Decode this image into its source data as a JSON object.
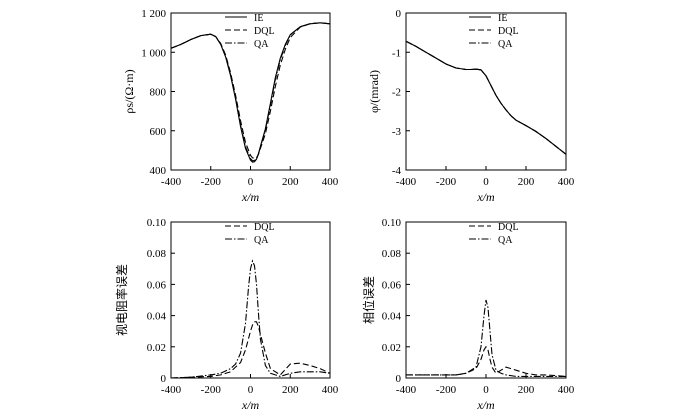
{
  "chart_data": [
    {
      "type": "line",
      "panel": "top-left",
      "xlabel": "x/m",
      "ylabel": "ρs/(Ω·m)",
      "xlim": [
        -400,
        400
      ],
      "ylim": [
        400,
        1200
      ],
      "xticks": [
        -400,
        -200,
        0,
        200,
        400
      ],
      "xtick_labels": [
        "-400",
        "-200",
        "0",
        "200",
        "400"
      ],
      "yticks": [
        400,
        600,
        800,
        1000,
        1200
      ],
      "ytick_labels": [
        "400",
        "600",
        "800",
        "1 000",
        "1 200"
      ],
      "legend": [
        "IE",
        "DQL",
        "QA"
      ],
      "series": [
        {
          "name": "IE",
          "style": "solid",
          "x": [
            -400,
            -350,
            -300,
            -250,
            -200,
            -175,
            -150,
            -125,
            -100,
            -75,
            -50,
            -25,
            0,
            10,
            20,
            30,
            40,
            50,
            75,
            100,
            125,
            150,
            175,
            200,
            250,
            300,
            350,
            400
          ],
          "y": [
            1020,
            1040,
            1065,
            1085,
            1092,
            1080,
            1040,
            975,
            880,
            760,
            620,
            510,
            450,
            440,
            442,
            455,
            480,
            520,
            610,
            740,
            870,
            970,
            1040,
            1090,
            1130,
            1145,
            1150,
            1145
          ]
        },
        {
          "name": "DQL",
          "style": "dashed",
          "x": [
            -400,
            -350,
            -300,
            -250,
            -200,
            -175,
            -150,
            -125,
            -100,
            -75,
            -50,
            -25,
            0,
            10,
            20,
            30,
            40,
            50,
            75,
            100,
            125,
            150,
            175,
            200,
            250,
            300,
            350,
            400
          ],
          "y": [
            1020,
            1040,
            1065,
            1085,
            1092,
            1080,
            1045,
            985,
            895,
            780,
            650,
            540,
            475,
            462,
            458,
            462,
            480,
            510,
            585,
            700,
            825,
            935,
            1015,
            1075,
            1128,
            1146,
            1150,
            1145
          ]
        },
        {
          "name": "QA",
          "style": "dashdot",
          "x": [
            -400,
            -350,
            -300,
            -250,
            -200,
            -175,
            -150,
            -125,
            -100,
            -75,
            -50,
            -25,
            0,
            10,
            20,
            30,
            40,
            50,
            75,
            100,
            125,
            150,
            175,
            200,
            250,
            300,
            350,
            400
          ],
          "y": [
            1020,
            1040,
            1065,
            1085,
            1092,
            1080,
            1042,
            978,
            885,
            765,
            628,
            518,
            458,
            447,
            448,
            460,
            482,
            518,
            605,
            730,
            860,
            962,
            1035,
            1088,
            1130,
            1145,
            1150,
            1145
          ]
        }
      ]
    },
    {
      "type": "line",
      "panel": "top-right",
      "xlabel": "x/m",
      "ylabel": "φ/(mrad)",
      "xlim": [
        -400,
        400
      ],
      "ylim": [
        -4,
        0
      ],
      "xticks": [
        -400,
        -200,
        0,
        200,
        400
      ],
      "xtick_labels": [
        "-400",
        "-200",
        "0",
        "200",
        "400"
      ],
      "yticks": [
        -4,
        -3,
        -2,
        -1,
        0
      ],
      "ytick_labels": [
        "-4",
        "-3",
        "-2",
        "-1",
        "0"
      ],
      "legend": [
        "IE",
        "DQL",
        "QA"
      ],
      "series": [
        {
          "name": "IE",
          "style": "solid",
          "x": [
            -400,
            -350,
            -300,
            -250,
            -200,
            -150,
            -100,
            -75,
            -50,
            -25,
            0,
            25,
            50,
            75,
            100,
            125,
            150,
            175,
            200,
            250,
            300,
            350,
            400
          ],
          "y": [
            -0.72,
            -0.85,
            -1.0,
            -1.15,
            -1.3,
            -1.4,
            -1.44,
            -1.44,
            -1.43,
            -1.45,
            -1.6,
            -1.85,
            -2.1,
            -2.3,
            -2.47,
            -2.62,
            -2.73,
            -2.8,
            -2.87,
            -3.02,
            -3.2,
            -3.4,
            -3.6
          ]
        },
        {
          "name": "DQL",
          "style": "dashed",
          "x": [
            -400,
            -350,
            -300,
            -250,
            -200,
            -150,
            -100,
            -75,
            -50,
            -25,
            0,
            25,
            50,
            75,
            100,
            125,
            150,
            175,
            200,
            250,
            300,
            350,
            400
          ],
          "y": [
            -0.72,
            -0.85,
            -1.0,
            -1.15,
            -1.3,
            -1.4,
            -1.44,
            -1.44,
            -1.43,
            -1.45,
            -1.6,
            -1.85,
            -2.1,
            -2.3,
            -2.47,
            -2.62,
            -2.73,
            -2.8,
            -2.87,
            -3.02,
            -3.2,
            -3.4,
            -3.6
          ]
        },
        {
          "name": "QA",
          "style": "dashdot",
          "x": [
            -400,
            -350,
            -300,
            -250,
            -200,
            -150,
            -100,
            -75,
            -50,
            -25,
            0,
            25,
            50,
            75,
            100,
            125,
            150,
            175,
            200,
            250,
            300,
            350,
            400
          ],
          "y": [
            -0.72,
            -0.85,
            -1.0,
            -1.15,
            -1.3,
            -1.4,
            -1.44,
            -1.44,
            -1.43,
            -1.45,
            -1.6,
            -1.85,
            -2.1,
            -2.3,
            -2.47,
            -2.62,
            -2.73,
            -2.8,
            -2.87,
            -3.02,
            -3.2,
            -3.4,
            -3.6
          ]
        }
      ]
    },
    {
      "type": "line",
      "panel": "bottom-left",
      "xlabel": "x/m",
      "ylabel": "视电阻率误差",
      "xlim": [
        -400,
        400
      ],
      "ylim": [
        0,
        0.1
      ],
      "xticks": [
        -400,
        -200,
        0,
        200,
        400
      ],
      "xtick_labels": [
        "-400",
        "-200",
        "0",
        "200",
        "400"
      ],
      "yticks": [
        0,
        0.02,
        0.04,
        0.06,
        0.08,
        0.1
      ],
      "ytick_labels": [
        "0",
        "0.02",
        "0.04",
        "0.06",
        "0.08",
        "0.10"
      ],
      "legend": [
        "DQL",
        "QA"
      ],
      "series": [
        {
          "name": "DQL",
          "style": "dashed",
          "x": [
            -400,
            -300,
            -200,
            -150,
            -100,
            -50,
            -25,
            0,
            10,
            20,
            30,
            40,
            50,
            75,
            100,
            150,
            200,
            250,
            300,
            350,
            400
          ],
          "y": [
            0.0,
            0.0005,
            0.001,
            0.002,
            0.004,
            0.01,
            0.018,
            0.03,
            0.034,
            0.036,
            0.036,
            0.033,
            0.028,
            0.016,
            0.006,
            0.002,
            0.009,
            0.0095,
            0.008,
            0.006,
            0.003
          ]
        },
        {
          "name": "QA",
          "style": "dashdot",
          "x": [
            -400,
            -300,
            -200,
            -150,
            -100,
            -75,
            -50,
            -25,
            -10,
            0,
            10,
            20,
            30,
            40,
            50,
            75,
            100,
            150,
            200,
            250,
            300,
            350,
            400
          ],
          "y": [
            0.0,
            0.0005,
            0.002,
            0.003,
            0.006,
            0.009,
            0.016,
            0.035,
            0.058,
            0.07,
            0.075,
            0.072,
            0.06,
            0.042,
            0.025,
            0.008,
            0.003,
            0.001,
            0.003,
            0.004,
            0.004,
            0.004,
            0.003
          ]
        }
      ]
    },
    {
      "type": "line",
      "panel": "bottom-right",
      "xlabel": "x/m",
      "ylabel": "相位误差",
      "xlim": [
        -400,
        400
      ],
      "ylim": [
        0,
        0.1
      ],
      "xticks": [
        -400,
        -200,
        0,
        200,
        400
      ],
      "xtick_labels": [
        "-400",
        "-200",
        "0",
        "200",
        "400"
      ],
      "yticks": [
        0,
        0.02,
        0.04,
        0.06,
        0.08,
        0.1
      ],
      "ytick_labels": [
        "0",
        "0.02",
        "0.04",
        "0.06",
        "0.08",
        "0.10"
      ],
      "legend": [
        "DQL",
        "QA"
      ],
      "series": [
        {
          "name": "DQL",
          "style": "dashed",
          "x": [
            -400,
            -300,
            -200,
            -150,
            -100,
            -50,
            -25,
            -10,
            0,
            10,
            20,
            30,
            50,
            75,
            100,
            150,
            200,
            250,
            300,
            400
          ],
          "y": [
            0.002,
            0.002,
            0.002,
            0.002,
            0.003,
            0.006,
            0.012,
            0.018,
            0.02,
            0.018,
            0.012,
            0.007,
            0.003,
            0.005,
            0.007,
            0.005,
            0.003,
            0.002,
            0.002,
            0.001
          ]
        },
        {
          "name": "QA",
          "style": "dashdot",
          "x": [
            -400,
            -300,
            -200,
            -150,
            -100,
            -50,
            -25,
            -10,
            0,
            10,
            20,
            30,
            50,
            75,
            100,
            150,
            200,
            250,
            300,
            400
          ],
          "y": [
            0.002,
            0.002,
            0.002,
            0.002,
            0.003,
            0.007,
            0.02,
            0.04,
            0.05,
            0.045,
            0.03,
            0.015,
            0.005,
            0.003,
            0.002,
            0.001,
            0.001,
            0.001,
            0.001,
            0.001
          ]
        }
      ]
    }
  ]
}
